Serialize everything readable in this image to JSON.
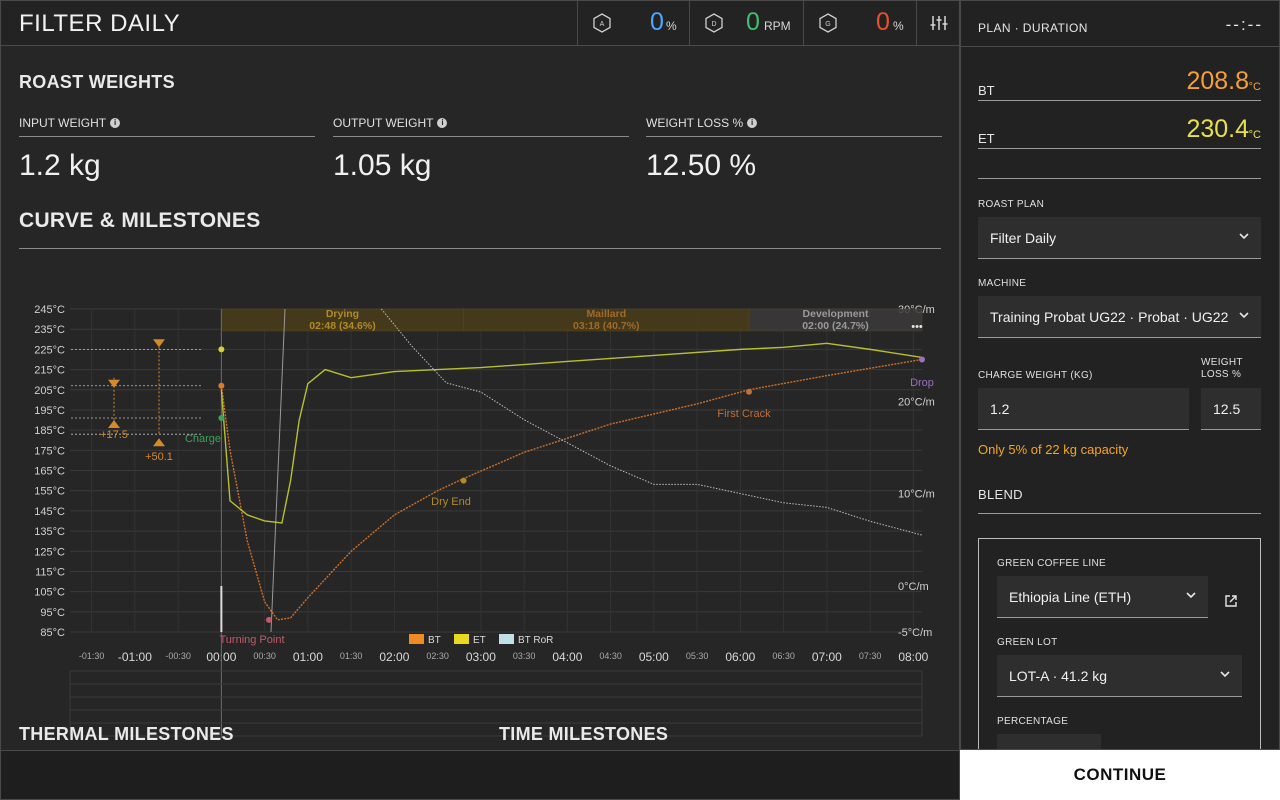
{
  "header": {
    "title": "FILTER DAILY"
  },
  "gauges": [
    {
      "letter": "A",
      "value": "0",
      "unit": "%",
      "color": "#4da6ff"
    },
    {
      "letter": "D",
      "value": "0",
      "unit": "RPM",
      "color": "#3fbf6f"
    },
    {
      "letter": "G",
      "value": "0",
      "unit": "%",
      "color": "#e8502d"
    }
  ],
  "roast_weights": {
    "title": "ROAST WEIGHTS",
    "input": {
      "label": "INPUT WEIGHT",
      "value": "1.2 kg"
    },
    "output": {
      "label": "OUTPUT WEIGHT",
      "value": "1.05 kg"
    },
    "loss": {
      "label": "WEIGHT LOSS %",
      "value": "12.50 %"
    }
  },
  "curve_title": "CURVE & MILESTONES",
  "thermal_title": "THERMAL MILESTONES",
  "time_title": "TIME MILESTONES",
  "chart_data": {
    "type": "line",
    "x_unit": "minutes",
    "xlim": [
      -1.75,
      8.1
    ],
    "temp_ticks": [
      "245°C",
      "235°C",
      "225°C",
      "215°C",
      "205°C",
      "195°C",
      "185°C",
      "175°C",
      "165°C",
      "155°C",
      "145°C",
      "135°C",
      "125°C",
      "115°C",
      "105°C",
      "95°C",
      "85°C"
    ],
    "temp_range": [
      85,
      245
    ],
    "ror_ticks": [
      "30°C/m",
      "20°C/m",
      "10°C/m",
      "0°C/m",
      "-5°C/m"
    ],
    "ror_range": [
      -5,
      30
    ],
    "x_ticks_major": [
      "-01:00",
      "00:00",
      "01:00",
      "02:00",
      "03:00",
      "04:00",
      "05:00",
      "06:00",
      "07:00",
      "08:00"
    ],
    "x_ticks_minor": [
      "-01:30",
      "-00:30",
      "00:30",
      "01:30",
      "02:30",
      "03:30",
      "04:30",
      "05:30",
      "06:30",
      "07:30"
    ],
    "phases": [
      {
        "name": "Drying",
        "detail": "02:48 (34.6%)",
        "start": 0,
        "end": 2.8,
        "color": "#b08a2a"
      },
      {
        "name": "Maillard",
        "detail": "03:18 (40.7%)",
        "start": 2.8,
        "end": 6.1,
        "color": "#a06a2a"
      },
      {
        "name": "Development",
        "detail": "02:00 (24.7%)",
        "start": 6.1,
        "end": 8.1,
        "color": "#9a9a9a"
      }
    ],
    "series": [
      {
        "name": "BT",
        "color": "#e0782a",
        "x": [
          0,
          0.1,
          0.3,
          0.5,
          0.65,
          0.8,
          1.0,
          1.5,
          2.0,
          2.5,
          2.8,
          3.5,
          4.5,
          5.5,
          6.1,
          7.0,
          8.1
        ],
        "y": [
          207,
          175,
          130,
          100,
          91,
          92,
          102,
          125,
          143,
          155,
          161,
          174,
          188,
          198,
          205,
          212,
          220
        ]
      },
      {
        "name": "ET",
        "color": "#c8d033",
        "x": [
          0,
          0.1,
          0.3,
          0.5,
          0.7,
          0.8,
          0.9,
          1.0,
          1.2,
          1.5,
          2.0,
          3.0,
          4.0,
          5.0,
          6.0,
          6.5,
          7.0,
          7.5,
          8.1
        ],
        "y": [
          205,
          150,
          143,
          140,
          139,
          160,
          190,
          208,
          215,
          211,
          214,
          216,
          219,
          222,
          225,
          226,
          228,
          225,
          221
        ]
      },
      {
        "name": "BT RoR",
        "color": "#cfcfcf",
        "x": [
          1.85,
          2.2,
          2.6,
          3.0,
          3.5,
          4.0,
          4.5,
          5.0,
          5.5,
          6.0,
          6.5,
          7.0,
          7.5,
          8.1
        ],
        "y": [
          30,
          26,
          22,
          21,
          18,
          15.5,
          13,
          11,
          11,
          10,
          9,
          8.5,
          7,
          5.5
        ]
      }
    ],
    "markers": [
      {
        "label": "Charge",
        "x": 0,
        "y": 191,
        "color": "#3aa35a"
      },
      {
        "label": "Turning Point",
        "x": 0.55,
        "y": 91,
        "color": "#c05a6a"
      },
      {
        "label": "Dry End",
        "x": 2.8,
        "y": 160,
        "color": "#b08a2a"
      },
      {
        "label": "First Crack",
        "x": 6.1,
        "y": 204,
        "color": "#c0703a"
      },
      {
        "label": "Drop",
        "x": 8.1,
        "y": 220,
        "color": "#9b6fc0"
      }
    ],
    "annotations": [
      {
        "text": "+17.5"
      },
      {
        "text": "+50.1"
      }
    ],
    "legend": [
      "BT",
      "ET",
      "BT RoR"
    ],
    "more_label": "•••"
  },
  "panel": {
    "title": "PLAN · DURATION",
    "time": "--:--",
    "bt": {
      "label": "BT",
      "value": "208.8",
      "unit": "°C",
      "color": "#f5a035"
    },
    "et": {
      "label": "ET",
      "value": "230.4",
      "unit": "°C",
      "color": "#e8e04a"
    },
    "roast_plan": {
      "label": "ROAST PLAN",
      "value": "Filter Daily"
    },
    "machine": {
      "label": "MACHINE",
      "value": "Training Probat UG22 · Probat · UG22"
    },
    "charge_weight": {
      "label": "CHARGE WEIGHT (KG)",
      "value": "1.2"
    },
    "weight_loss": {
      "label": "WEIGHT LOSS %",
      "value": "12.5"
    },
    "warning": "Only 5% of 22 kg capacity",
    "blend": {
      "title": "BLEND",
      "line_label": "GREEN COFFEE LINE",
      "line_value": "Ethiopia Line (ETH)",
      "lot_label": "GREEN LOT",
      "lot_value": "LOT-A · 41.2 kg",
      "pct_label": "PERCENTAGE"
    }
  },
  "continue_label": "CONTINUE"
}
